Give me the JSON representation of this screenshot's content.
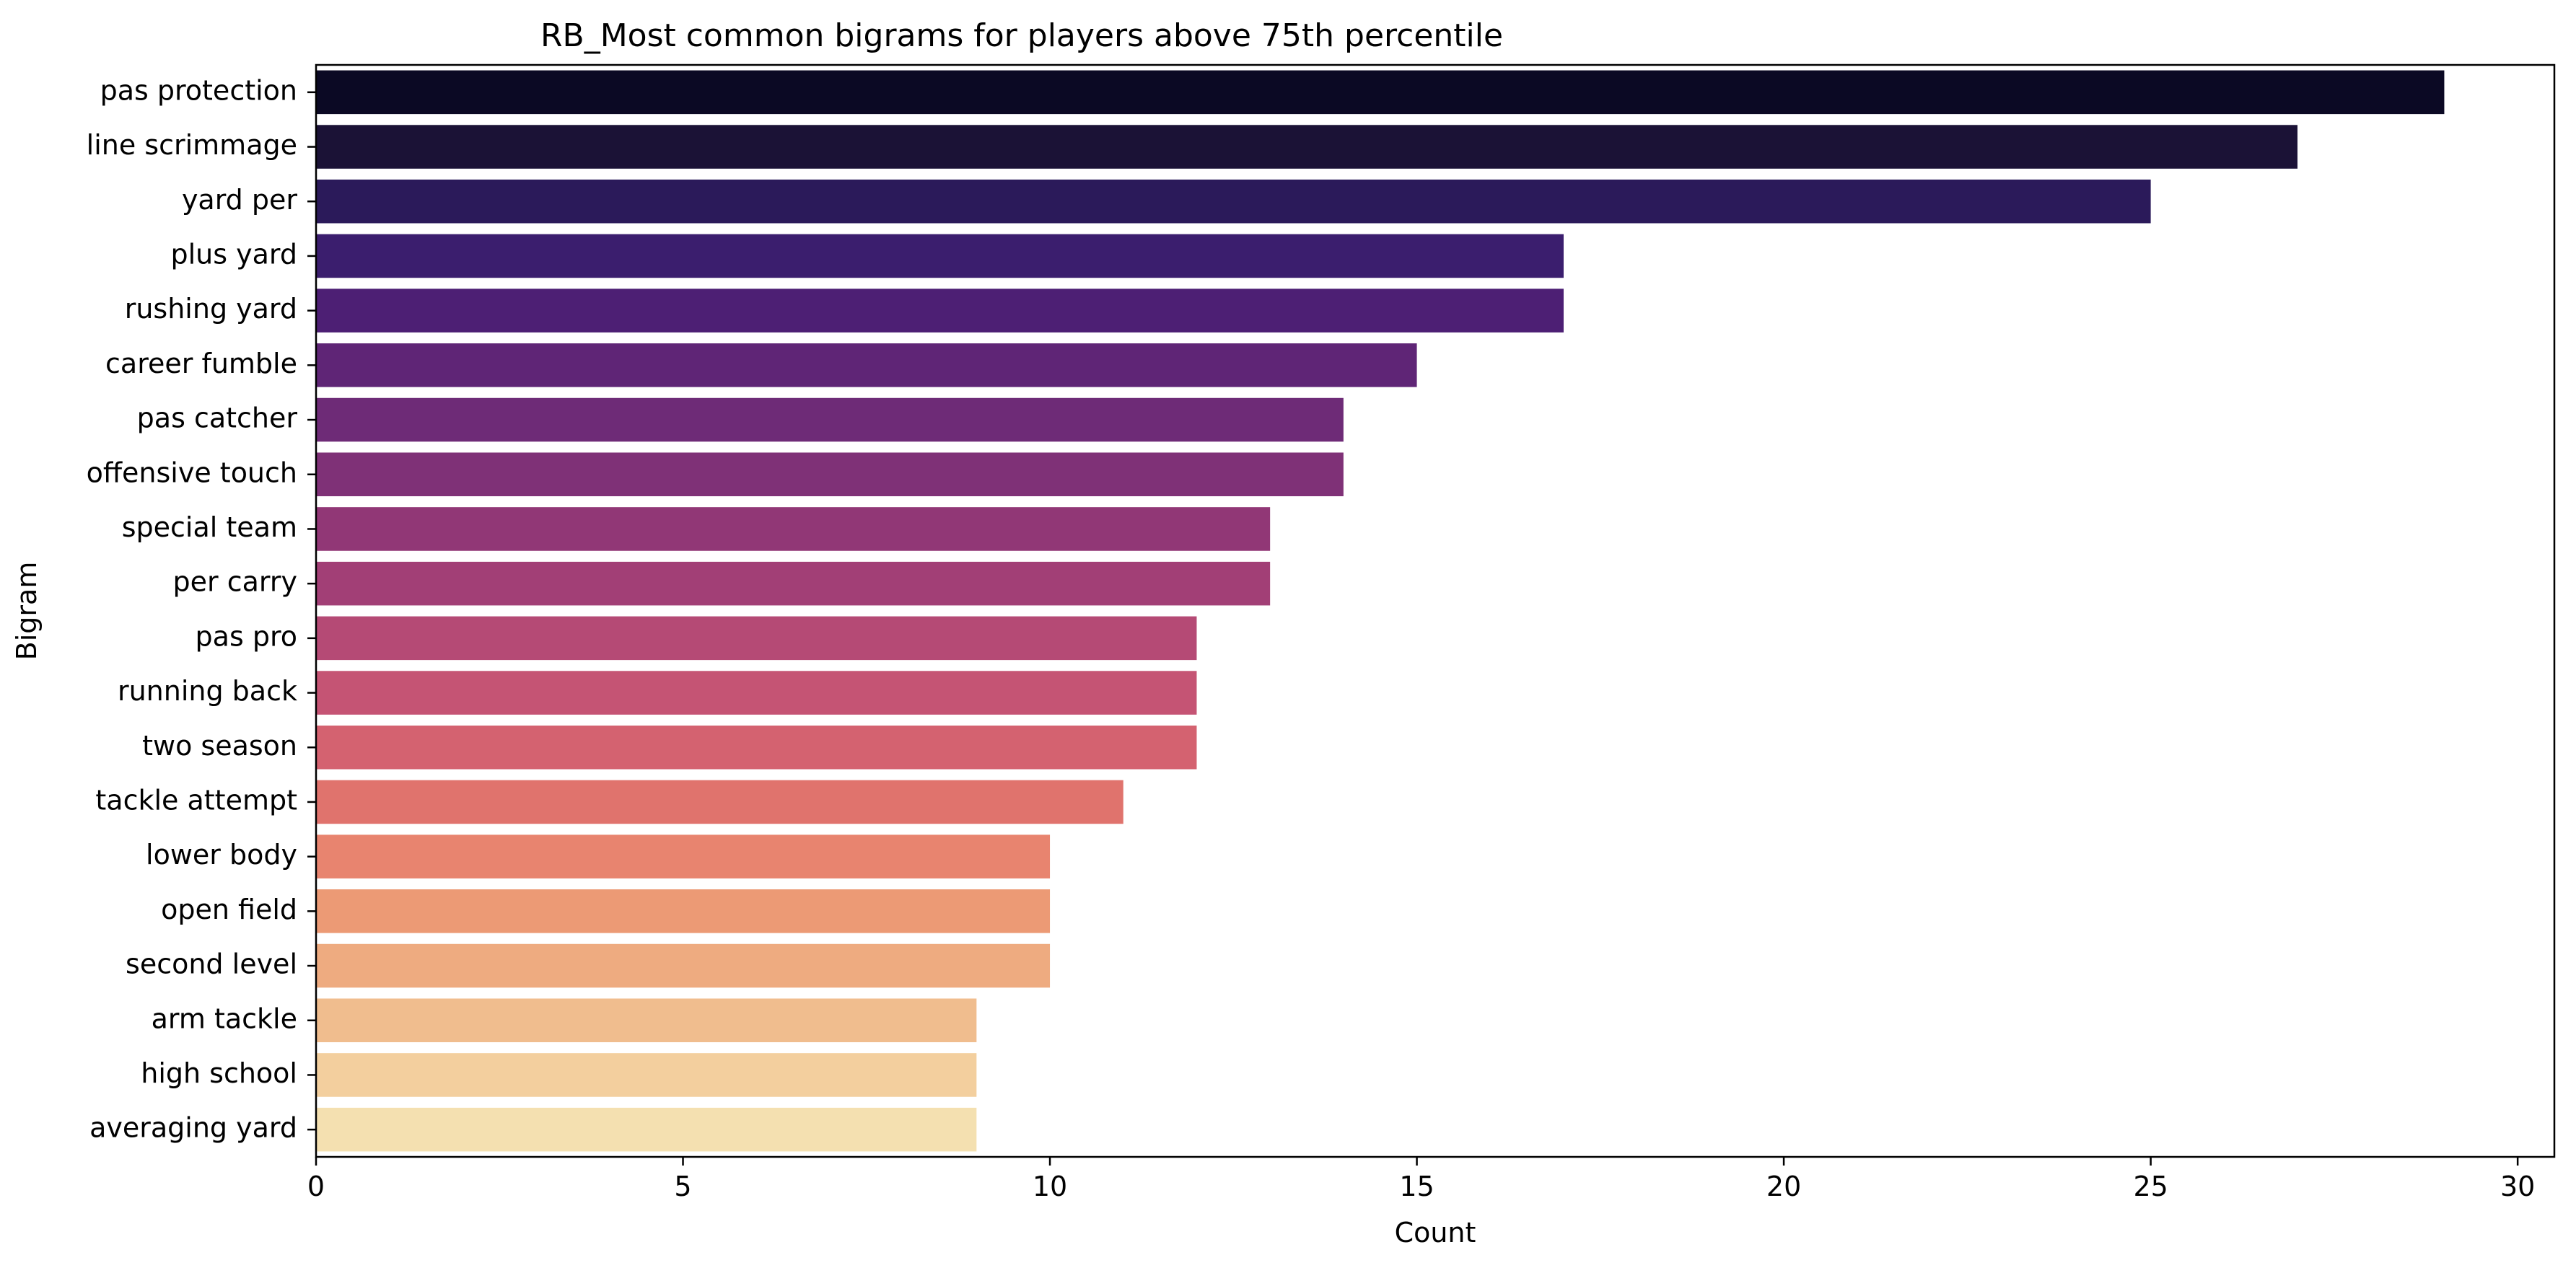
{
  "chart_data": {
    "type": "bar",
    "orientation": "horizontal",
    "title": "RB_Most common bigrams for players above 75th percentile",
    "xlabel": "Count",
    "ylabel": "Bigram",
    "xlim": [
      0,
      30.5
    ],
    "xticks": [
      0,
      5,
      10,
      15,
      20,
      25,
      30
    ],
    "grid": false,
    "categories": [
      "pas protection",
      "line scrimmage",
      "yard per",
      "plus yard",
      "rushing yard",
      "career fumble",
      "pas catcher",
      "offensive touch",
      "special team",
      "per carry",
      "pas pro",
      "running back",
      "two season",
      "tackle attempt",
      "lower body",
      "open field",
      "second level",
      "arm tackle",
      "high school",
      "averaging yard"
    ],
    "values": [
      29,
      27,
      25,
      17,
      17,
      15,
      14,
      14,
      13,
      13,
      12,
      12,
      12,
      11,
      10,
      10,
      10,
      9,
      9,
      9
    ],
    "colors": [
      "#0b0924",
      "#1b1236",
      "#2b1a5a",
      "#3b1e6e",
      "#4d1f74",
      "#5f2576",
      "#6e2b77",
      "#7f3177",
      "#913776",
      "#a23f76",
      "#b54a75",
      "#c55474",
      "#d46270",
      "#e0736d",
      "#e8846f",
      "#ec9a75",
      "#eeab80",
      "#f0bd8e",
      "#f3cf9e",
      "#f4e0b0"
    ]
  }
}
